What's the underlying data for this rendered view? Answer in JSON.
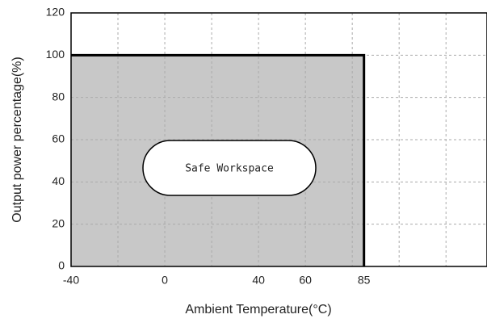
{
  "chart_data": {
    "type": "area",
    "x_label": "Ambient Temperature(°C)",
    "y_label": "Output power percentage(%)",
    "x": [
      -40,
      85,
      85
    ],
    "values": [
      100,
      100,
      0
    ],
    "color": "#000000",
    "fill": "#c8c8c8",
    "xlim": [
      -40,
      137.5
    ],
    "xticks": [
      -40,
      0,
      40,
      60,
      85
    ],
    "xgrid": [
      -20,
      0,
      20,
      40,
      60,
      80,
      100,
      120
    ],
    "ylim": [
      0,
      120
    ],
    "yticks": [
      0,
      20,
      40,
      60,
      80,
      100,
      120
    ],
    "grid": true,
    "annotation": "Safe Workspace"
  }
}
